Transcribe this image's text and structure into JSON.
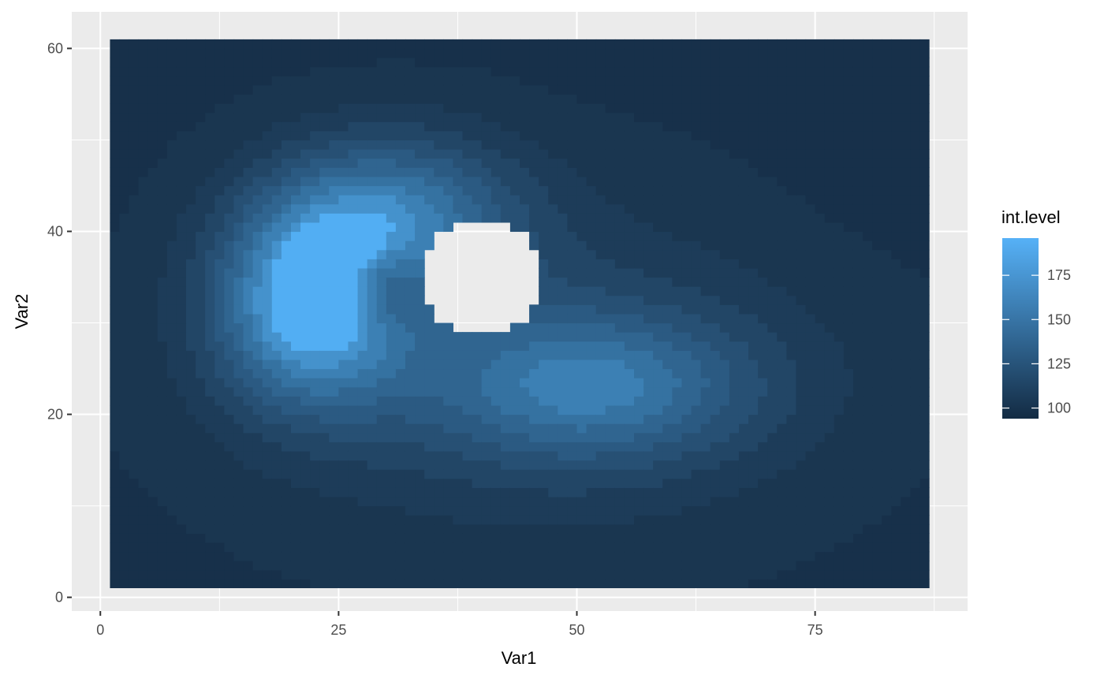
{
  "chart_data": {
    "type": "heatmap",
    "subtype": "filled-contour",
    "title": "",
    "xlabel": "Var1",
    "ylabel": "Var2",
    "xlim": [
      -3,
      91
    ],
    "ylim": [
      -1.5,
      64
    ],
    "x_ticks": [
      0,
      25,
      50,
      75
    ],
    "y_ticks": [
      0,
      20,
      40,
      60
    ],
    "grid": true,
    "data_extent": {
      "x": [
        1,
        87
      ],
      "y": [
        1,
        61
      ]
    },
    "legend": {
      "title": "int.level",
      "position": "right",
      "range": [
        94,
        196
      ],
      "ticks": [
        100,
        125,
        150,
        175
      ],
      "color_low": "#132B43",
      "color_high": "#56B1F7"
    },
    "contour_levels": [
      {
        "level": 100,
        "fill": "#17304a"
      },
      {
        "level": 110,
        "fill": "#1a3650"
      },
      {
        "level": 120,
        "fill": "#1d3c59"
      },
      {
        "level": 130,
        "fill": "#224666"
      },
      {
        "level": 140,
        "fill": "#275074"
      },
      {
        "level": 150,
        "fill": "#2b5a82"
      },
      {
        "level": 160,
        "fill": "#306590"
      },
      {
        "level": 170,
        "fill": "#3572a1"
      },
      {
        "level": 180,
        "fill": "#3c80b4"
      },
      {
        "level": 190,
        "fill": "#4592cc"
      },
      {
        "level": 196,
        "fill": "#52aef3"
      }
    ],
    "missing_region": {
      "center": [
        40,
        35
      ],
      "radius": 6.5
    }
  }
}
